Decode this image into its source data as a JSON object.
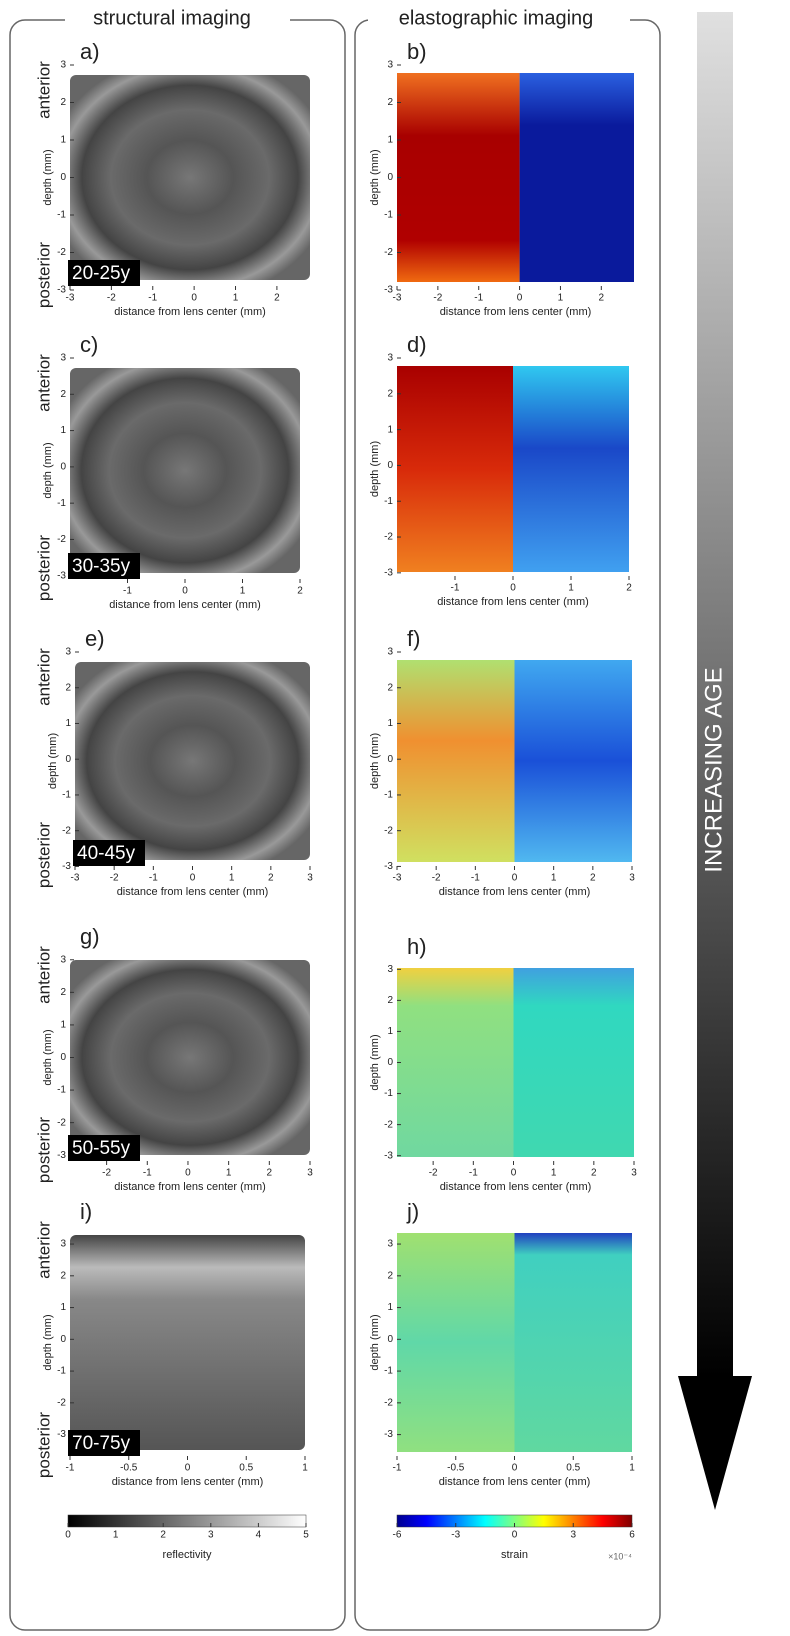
{
  "headers": {
    "structural": "structural imaging",
    "elastographic": "elastographic imaging",
    "age_arrow": "INCREASING AGE"
  },
  "chart_data": [
    {
      "type": "image",
      "title": "a)",
      "annotation": "20-25y",
      "top_label": "anterior",
      "bottom_label": "posterior",
      "x_label": "distance from lens center (mm)",
      "y_label": "depth (mm)",
      "xlim": [
        -3,
        2.8
      ],
      "ylim": [
        -3,
        3
      ],
      "xticks": [
        -3,
        -2,
        -1,
        0,
        1,
        2
      ],
      "yticks": [
        -3,
        -2,
        -1,
        0,
        1,
        2,
        3
      ]
    },
    {
      "type": "image",
      "title": "b)",
      "x_label": "distance from lens center (mm)",
      "y_label": "depth (mm)",
      "xlim": [
        -3,
        2.8
      ],
      "ylim": [
        -3,
        3
      ],
      "xticks": [
        -3,
        -2,
        -1,
        0,
        1,
        2
      ],
      "yticks": [
        -3,
        -2,
        -1,
        0,
        1,
        2,
        3
      ]
    },
    {
      "type": "image",
      "title": "c)",
      "annotation": "30-35y",
      "top_label": "anterior",
      "bottom_label": "posterior",
      "x_label": "distance from lens center (mm)",
      "y_label": "depth (mm)",
      "xlim": [
        -2,
        2
      ],
      "ylim": [
        -3.2,
        3
      ],
      "xticks": [
        -1,
        0,
        1,
        2
      ],
      "yticks": [
        -3,
        -2,
        -1,
        0,
        1,
        2,
        3
      ]
    },
    {
      "type": "image",
      "title": "d)",
      "x_label": "distance from lens center (mm)",
      "y_label": "depth (mm)",
      "xlim": [
        -2,
        2
      ],
      "ylim": [
        -3.2,
        3
      ],
      "xticks": [
        -1,
        0,
        1,
        2
      ],
      "yticks": [
        -3,
        -2,
        -1,
        0,
        1,
        2,
        3
      ]
    },
    {
      "type": "image",
      "title": "e)",
      "annotation": "40-45y",
      "top_label": "anterior",
      "bottom_label": "posterior",
      "x_label": "distance from lens center (mm)",
      "y_label": "depth (mm)",
      "xlim": [
        -3,
        3
      ],
      "ylim": [
        -3.1,
        3
      ],
      "xticks": [
        -3,
        -2,
        -1,
        0,
        1,
        2,
        3
      ],
      "yticks": [
        -3,
        -2,
        -1,
        0,
        1,
        2,
        3
      ]
    },
    {
      "type": "image",
      "title": "f)",
      "x_label": "distance from lens center (mm)",
      "y_label": "depth (mm)",
      "xlim": [
        -3,
        3
      ],
      "ylim": [
        -3.1,
        3
      ],
      "xticks": [
        -3,
        -2,
        -1,
        0,
        1,
        2,
        3
      ],
      "yticks": [
        -3,
        -2,
        -1,
        0,
        1,
        2,
        3
      ]
    },
    {
      "type": "image",
      "title": "g)",
      "annotation": "50-55y",
      "top_label": "anterior",
      "bottom_label": "posterior",
      "x_label": "distance from lens center (mm)",
      "y_label": "depth (mm)",
      "xlim": [
        -2.9,
        3
      ],
      "ylim": [
        -3.3,
        3.3
      ],
      "xticks": [
        -2,
        -1,
        0,
        1,
        2,
        3
      ],
      "yticks": [
        -3,
        -2,
        -1,
        0,
        1,
        2,
        3
      ]
    },
    {
      "type": "image",
      "title": "h)",
      "x_label": "distance from lens center (mm)",
      "y_label": "depth (mm)",
      "xlim": [
        -2.9,
        3
      ],
      "ylim": [
        -3.3,
        3.3
      ],
      "xticks": [
        -2,
        -1,
        0,
        1,
        2,
        3
      ],
      "yticks": [
        -3,
        -2,
        -1,
        0,
        1,
        2,
        3
      ]
    },
    {
      "type": "image",
      "title": "i)",
      "annotation": "70-75y",
      "top_label": "anterior",
      "bottom_label": "posterior",
      "x_label": "distance from lens center (mm)",
      "y_label": "depth (mm)",
      "xlim": [
        -1,
        1
      ],
      "ylim": [
        -3.8,
        3.6
      ],
      "xticks": [
        -1,
        -0.5,
        0,
        0.5,
        1
      ],
      "yticks": [
        -3,
        -2,
        -1,
        0,
        1,
        2,
        3
      ]
    },
    {
      "type": "image",
      "title": "j)",
      "x_label": "distance from lens center (mm)",
      "y_label": "depth (mm)",
      "xlim": [
        -1,
        1
      ],
      "ylim": [
        -3.8,
        3.6
      ],
      "xticks": [
        -1,
        -0.5,
        0,
        0.5,
        1
      ],
      "yticks": [
        -3,
        -2,
        -1,
        0,
        1,
        2,
        3
      ]
    },
    {
      "type": "colorbar",
      "x_label": "reflectivity",
      "xlim": [
        0,
        5
      ],
      "xticks": [
        0,
        1,
        2,
        3,
        4,
        5
      ]
    },
    {
      "type": "colorbar",
      "x_label": "strain",
      "exponent_label": "×10⁻⁴",
      "xlim": [
        -6,
        6
      ],
      "xticks": [
        -6,
        -3,
        0,
        3,
        6
      ]
    }
  ]
}
